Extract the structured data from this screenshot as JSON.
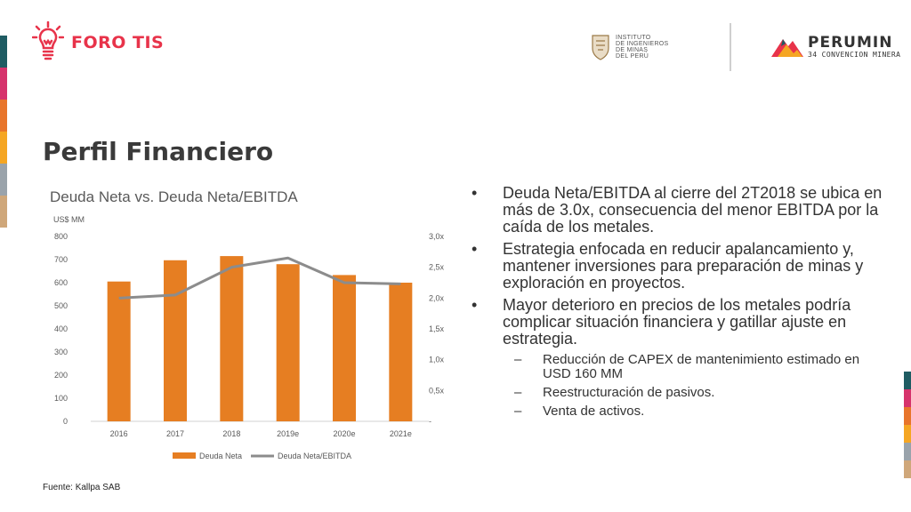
{
  "header": {
    "foro_logo_text": "FORO TIS",
    "iim_lines": [
      "INSTITUTO",
      "DE INGENIEROS",
      "DE MINAS",
      "DEL PERÚ"
    ],
    "perumin_title": "PERUMIN",
    "perumin_subtitle": "34 CONVENCION MINERA"
  },
  "page": {
    "title": "Perfil Financiero",
    "source": "Fuente: Kallpa SAB"
  },
  "colors": {
    "bar": "#e67e22",
    "line": "#8c8c8c",
    "title_red": "#e8334a",
    "stripes": [
      "#1f5c63",
      "#d6336c",
      "#e8752b",
      "#f5a623",
      "#9aa3ab",
      "#cfa77a"
    ]
  },
  "chart_data": {
    "type": "bar",
    "title": "Deuda Neta vs. Deuda Neta/EBITDA",
    "ylabel": "US$ MM",
    "categories": [
      "2016",
      "2017",
      "2018",
      "2019e",
      "2020e",
      "2021e"
    ],
    "series": [
      {
        "name": "Deuda Neta",
        "type": "bar",
        "axis": "left",
        "values": [
          605,
          697,
          715,
          680,
          633,
          600
        ]
      },
      {
        "name": "Deuda Neta/EBITDA",
        "type": "line",
        "axis": "right",
        "values": [
          2.0,
          2.05,
          2.5,
          2.65,
          2.25,
          2.23
        ]
      }
    ],
    "ylim": [
      0,
      800
    ],
    "y_ticks": [
      "0",
      "100",
      "200",
      "300",
      "400",
      "500",
      "600",
      "700",
      "800"
    ],
    "y2lim": [
      0,
      3.0
    ],
    "y2_ticks": [
      "-",
      "0,5x",
      "1,0x",
      "1,5x",
      "2,0x",
      "2,5x",
      "3,0x"
    ],
    "grid": false,
    "legend_position": "bottom"
  },
  "bullets": [
    {
      "text": "Deuda Neta/EBITDA al cierre del 2T2018 se ubica en más de 3.0x, consecuencia del menor EBITDA por la caída de los metales."
    },
    {
      "text": "Estrategia enfocada en reducir apalancamiento y, mantener inversiones para preparación de minas y exploración en proyectos."
    },
    {
      "text": "Mayor deterioro en precios de los metales podría complicar situación financiera y gatillar ajuste en estrategia."
    }
  ],
  "sub_bullets": [
    "Reducción de CAPEX de mantenimiento estimado en USD 160 MM",
    "Reestructuración de pasivos.",
    "Venta de activos."
  ],
  "markers": {
    "bullet": "•",
    "dash": "–"
  }
}
